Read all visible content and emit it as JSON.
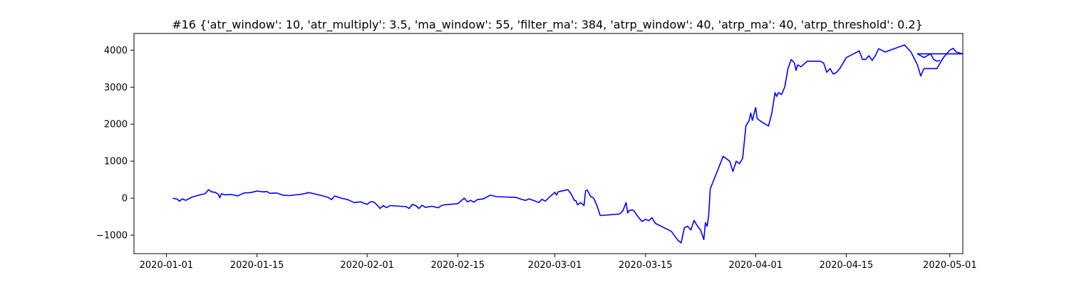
{
  "chart_data": {
    "type": "line",
    "title": "#16 {'atr_window': 10, 'atr_multiply': 3.5, 'ma_window': 55, 'filter_ma': 384, 'atrp_window': 40, 'atrp_ma': 40, 'atrp_threshold': 0.2}",
    "xlabel": "",
    "ylabel": "",
    "x_axis": "date",
    "xlim": [
      "2019-12-27",
      "2020-05-03"
    ],
    "ylim": [
      -1500,
      4450
    ],
    "grid": false,
    "legend": "none",
    "xticks": [
      "2020-01-01",
      "2020-01-15",
      "2020-02-01",
      "2020-02-15",
      "2020-03-01",
      "2020-03-15",
      "2020-04-01",
      "2020-04-15",
      "2020-05-01"
    ],
    "yticks": [
      -1000,
      0,
      1000,
      2000,
      3000,
      4000
    ],
    "series": [
      {
        "color": "#0000ff",
        "points": [
          [
            "2020-01-02",
            0
          ],
          [
            "2020-01-02T18:00",
            -30
          ],
          [
            "2020-01-03",
            -80
          ],
          [
            "2020-01-03T12:00",
            -20
          ],
          [
            "2020-01-04",
            -60
          ],
          [
            "2020-01-05",
            30
          ],
          [
            "2020-01-06",
            80
          ],
          [
            "2020-01-07",
            120
          ],
          [
            "2020-01-07T12:00",
            230
          ],
          [
            "2020-01-08",
            170
          ],
          [
            "2020-01-08T12:00",
            160
          ],
          [
            "2020-01-09",
            110
          ],
          [
            "2020-01-09T06:00",
            10
          ],
          [
            "2020-01-09T12:00",
            120
          ],
          [
            "2020-01-10",
            90
          ],
          [
            "2020-01-11",
            100
          ],
          [
            "2020-01-12",
            60
          ],
          [
            "2020-01-13",
            140
          ],
          [
            "2020-01-14",
            150
          ],
          [
            "2020-01-15",
            190
          ],
          [
            "2020-01-16",
            170
          ],
          [
            "2020-01-16T12:00",
            180
          ],
          [
            "2020-01-17",
            130
          ],
          [
            "2020-01-18",
            140
          ],
          [
            "2020-01-19",
            80
          ],
          [
            "2020-01-20",
            70
          ],
          [
            "2020-01-22",
            110
          ],
          [
            "2020-01-23",
            150
          ],
          [
            "2020-01-24",
            110
          ],
          [
            "2020-01-25",
            70
          ],
          [
            "2020-01-26",
            20
          ],
          [
            "2020-01-26T12:00",
            -40
          ],
          [
            "2020-01-27",
            60
          ],
          [
            "2020-01-28",
            0
          ],
          [
            "2020-01-29",
            -40
          ],
          [
            "2020-01-30",
            -120
          ],
          [
            "2020-01-31",
            -100
          ],
          [
            "2020-02-01",
            -170
          ],
          [
            "2020-02-01T12:00",
            -100
          ],
          [
            "2020-02-02",
            -100
          ],
          [
            "2020-02-02T12:00",
            -180
          ],
          [
            "2020-02-03",
            -280
          ],
          [
            "2020-02-03T12:00",
            -200
          ],
          [
            "2020-02-04",
            -260
          ],
          [
            "2020-02-04T12:00",
            -200
          ],
          [
            "2020-02-07",
            -230
          ],
          [
            "2020-02-07T12:00",
            -280
          ],
          [
            "2020-02-08",
            -170
          ],
          [
            "2020-02-08T12:00",
            -200
          ],
          [
            "2020-02-09",
            -280
          ],
          [
            "2020-02-09T12:00",
            -190
          ],
          [
            "2020-02-10",
            -250
          ],
          [
            "2020-02-11",
            -220
          ],
          [
            "2020-02-12",
            -260
          ],
          [
            "2020-02-12T12:00",
            -200
          ],
          [
            "2020-02-13",
            -180
          ],
          [
            "2020-02-15",
            -150
          ],
          [
            "2020-02-16",
            0
          ],
          [
            "2020-02-16T12:00",
            -100
          ],
          [
            "2020-02-17",
            -60
          ],
          [
            "2020-02-17T12:00",
            -110
          ],
          [
            "2020-02-18",
            -40
          ],
          [
            "2020-02-19",
            -20
          ],
          [
            "2020-02-20",
            80
          ],
          [
            "2020-02-21",
            40
          ],
          [
            "2020-02-24",
            20
          ],
          [
            "2020-02-25",
            -40
          ],
          [
            "2020-02-25T12:00",
            -60
          ],
          [
            "2020-02-26",
            -20
          ],
          [
            "2020-02-27",
            -80
          ],
          [
            "2020-02-27T12:00",
            -120
          ],
          [
            "2020-02-28",
            -30
          ],
          [
            "2020-02-28T12:00",
            -80
          ],
          [
            "2020-02-29",
            0
          ],
          [
            "2020-03-01",
            160
          ],
          [
            "2020-03-01T06:00",
            80
          ],
          [
            "2020-03-01T12:00",
            170
          ],
          [
            "2020-03-03",
            230
          ],
          [
            "2020-03-03T12:00",
            120
          ],
          [
            "2020-03-04",
            -60
          ],
          [
            "2020-03-04T06:00",
            -70
          ],
          [
            "2020-03-04T12:00",
            -180
          ],
          [
            "2020-03-05",
            -120
          ],
          [
            "2020-03-05T12:00",
            -200
          ],
          [
            "2020-03-05T18:00",
            200
          ],
          [
            "2020-03-06",
            220
          ],
          [
            "2020-03-06T12:00",
            50
          ],
          [
            "2020-03-07",
            0
          ],
          [
            "2020-03-07T12:00",
            -200
          ],
          [
            "2020-03-08",
            -470
          ],
          [
            "2020-03-11",
            -430
          ],
          [
            "2020-03-11T12:00",
            -340
          ],
          [
            "2020-03-12",
            -120
          ],
          [
            "2020-03-12T06:00",
            -400
          ],
          [
            "2020-03-12T12:00",
            -330
          ],
          [
            "2020-03-13",
            -320
          ],
          [
            "2020-03-13T06:00",
            -350
          ],
          [
            "2020-03-13T12:00",
            -420
          ],
          [
            "2020-03-14",
            -540
          ],
          [
            "2020-03-14T12:00",
            -630
          ],
          [
            "2020-03-15",
            -570
          ],
          [
            "2020-03-15T12:00",
            -610
          ],
          [
            "2020-03-16",
            -530
          ],
          [
            "2020-03-16T12:00",
            -680
          ],
          [
            "2020-03-19",
            -900
          ],
          [
            "2020-03-20",
            -1140
          ],
          [
            "2020-03-20T12:00",
            -1210
          ],
          [
            "2020-03-21",
            -800
          ],
          [
            "2020-03-21T12:00",
            -760
          ],
          [
            "2020-03-22",
            -860
          ],
          [
            "2020-03-22T12:00",
            -600
          ],
          [
            "2020-03-23",
            -750
          ],
          [
            "2020-03-23T12:00",
            -860
          ],
          [
            "2020-03-24",
            -1120
          ],
          [
            "2020-03-24T06:00",
            -660
          ],
          [
            "2020-03-24T12:00",
            -760
          ],
          [
            "2020-03-24T18:00",
            -480
          ],
          [
            "2020-03-25",
            250
          ],
          [
            "2020-03-27",
            1130
          ],
          [
            "2020-03-28",
            1000
          ],
          [
            "2020-03-28T12:00",
            720
          ],
          [
            "2020-03-29",
            1000
          ],
          [
            "2020-03-29T12:00",
            930
          ],
          [
            "2020-03-30",
            1080
          ],
          [
            "2020-03-30T06:00",
            1500
          ],
          [
            "2020-03-30T12:00",
            1950
          ],
          [
            "2020-03-31",
            2100
          ],
          [
            "2020-03-31T06:00",
            2300
          ],
          [
            "2020-03-31T12:00",
            2100
          ],
          [
            "2020-04-01",
            2450
          ],
          [
            "2020-04-01T06:00",
            2150
          ],
          [
            "2020-04-02",
            2050
          ],
          [
            "2020-04-03",
            1950
          ],
          [
            "2020-04-03T12:00",
            2300
          ],
          [
            "2020-04-04",
            2850
          ],
          [
            "2020-04-04T06:00",
            2750
          ],
          [
            "2020-04-04T12:00",
            2850
          ],
          [
            "2020-04-05",
            2800
          ],
          [
            "2020-04-05T12:00",
            3000
          ],
          [
            "2020-04-06",
            3500
          ],
          [
            "2020-04-06T12:00",
            3750
          ],
          [
            "2020-04-07",
            3650
          ],
          [
            "2020-04-07T06:00",
            3450
          ],
          [
            "2020-04-07T12:00",
            3600
          ],
          [
            "2020-04-08",
            3550
          ],
          [
            "2020-04-09",
            3700
          ],
          [
            "2020-04-11",
            3700
          ],
          [
            "2020-04-11T12:00",
            3650
          ],
          [
            "2020-04-12",
            3400
          ],
          [
            "2020-04-12T12:00",
            3500
          ],
          [
            "2020-04-13",
            3350
          ],
          [
            "2020-04-13T12:00",
            3400
          ],
          [
            "2020-04-14",
            3500
          ],
          [
            "2020-04-15",
            3800
          ],
          [
            "2020-04-17",
            3980
          ],
          [
            "2020-04-17T12:00",
            3750
          ],
          [
            "2020-04-18",
            3750
          ],
          [
            "2020-04-18T12:00",
            3850
          ],
          [
            "2020-04-19",
            3720
          ],
          [
            "2020-04-19T12:00",
            3850
          ],
          [
            "2020-04-20",
            4040
          ],
          [
            "2020-04-21",
            3950
          ],
          [
            "2020-04-24",
            4140
          ],
          [
            "2020-04-25",
            3950
          ],
          [
            "2020-04-26",
            3600
          ],
          [
            "2020-04-26T12:00",
            3300
          ],
          [
            "2020-04-27",
            3500
          ],
          [
            "2020-04-29",
            3500
          ],
          [
            "2020-04-29T12:00",
            3650
          ],
          [
            "2020-04-30",
            3800
          ],
          [
            "2020-05-01",
            4000
          ],
          [
            "2020-05-01T12:00",
            4050
          ],
          [
            "2020-05-02",
            3950
          ],
          [
            "2020-05-03",
            3900
          ],
          [
            "2020-04-26",
            3900
          ],
          [
            "2020-04-27",
            3800
          ],
          [
            "2020-04-28",
            3900
          ],
          [
            "2020-04-28T12:00",
            3750
          ],
          [
            "2020-04-29",
            3700
          ],
          [
            "2020-04-29T12:00",
            3720
          ]
        ]
      }
    ]
  }
}
